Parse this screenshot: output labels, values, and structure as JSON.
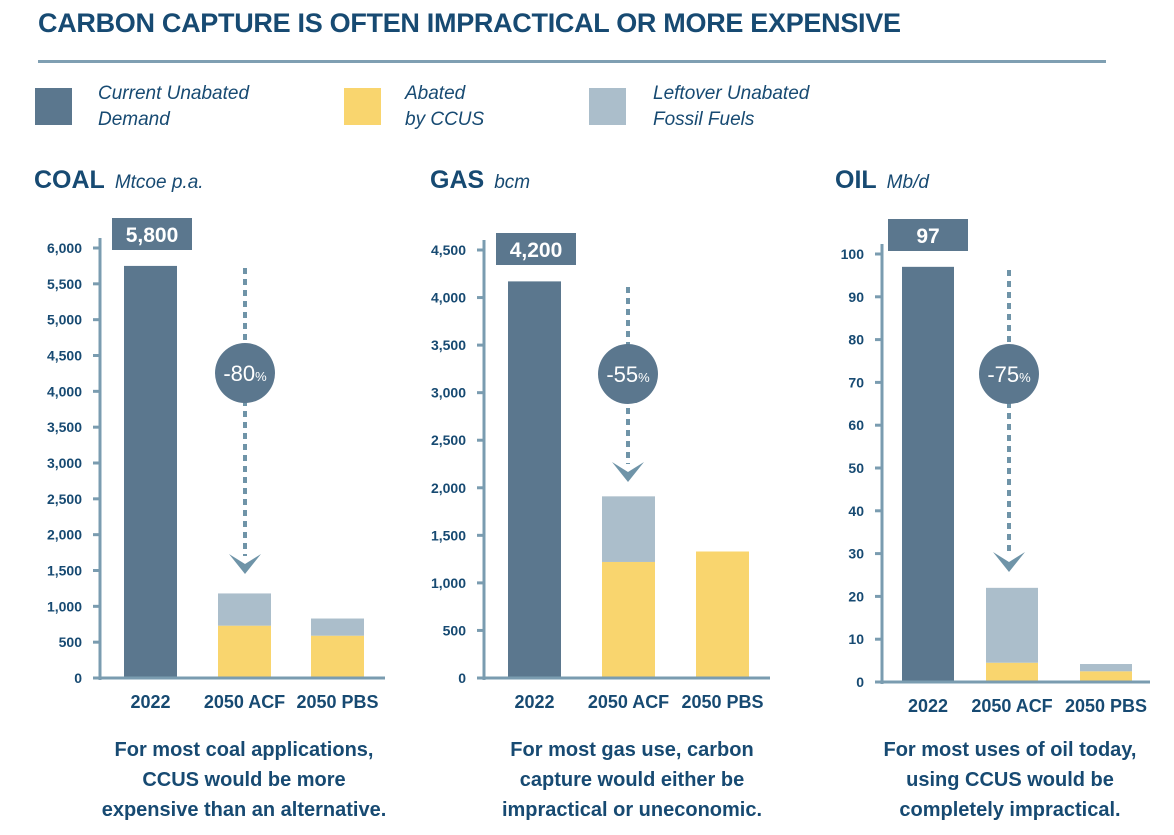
{
  "title": "CARBON CAPTURE IS OFTEN IMPRACTICAL OR MORE EXPENSIVE",
  "colors": {
    "current": "#5b778e",
    "abated": "#f9d56e",
    "leftover": "#abbecb",
    "axis": "#7a9cb0",
    "text": "#174a72"
  },
  "legend": [
    {
      "line1": "Current Unabated",
      "line2": "Demand",
      "color_key": "current"
    },
    {
      "line1": "Abated",
      "line2": "by CCUS",
      "color_key": "abated"
    },
    {
      "line1": "Leftover Unabated",
      "line2": "Fossil Fuels",
      "color_key": "leftover"
    }
  ],
  "chart_data": [
    {
      "type": "bar",
      "name": "COAL",
      "unit": "Mtcoe p.a.",
      "categories": [
        "2022",
        "2050 ACF",
        "2050 PBS"
      ],
      "ylim": [
        0,
        6000
      ],
      "yticks": [
        "0",
        "500",
        "1,000",
        "1,500",
        "2,000",
        "2,500",
        "3,000",
        "3,500",
        "4,000",
        "4,500",
        "5,000",
        "5,500",
        "6,000"
      ],
      "ytick_values": [
        0,
        500,
        1000,
        1500,
        2000,
        2500,
        3000,
        3500,
        4000,
        4500,
        5000,
        5500,
        6000
      ],
      "series": [
        {
          "name": "Current Unabated Demand",
          "values": [
            5750,
            0,
            0
          ]
        },
        {
          "name": "Abated by CCUS",
          "values": [
            0,
            730,
            590
          ]
        },
        {
          "name": "Leftover Unabated Fossil Fuels",
          "values": [
            0,
            450,
            240
          ]
        }
      ],
      "value_label": "5,800",
      "reduction_label": "-80",
      "reduction_suffix": "%",
      "caption": [
        "For most coal applications,",
        "CCUS would be more",
        "expensive than an alternative."
      ]
    },
    {
      "type": "bar",
      "name": "GAS",
      "unit": "bcm",
      "categories": [
        "2022",
        "2050 ACF",
        "2050 PBS"
      ],
      "ylim": [
        0,
        4500
      ],
      "yticks": [
        "0",
        "500",
        "1,000",
        "1,500",
        "2,000",
        "2,500",
        "3,000",
        "3,500",
        "4,000",
        "4,500"
      ],
      "ytick_values": [
        0,
        500,
        1000,
        1500,
        2000,
        2500,
        3000,
        3500,
        4000,
        4500
      ],
      "series": [
        {
          "name": "Current Unabated Demand",
          "values": [
            4170,
            0,
            0
          ]
        },
        {
          "name": "Abated by CCUS",
          "values": [
            0,
            1220,
            1330
          ]
        },
        {
          "name": "Leftover Unabated Fossil Fuels",
          "values": [
            0,
            690,
            0
          ]
        }
      ],
      "value_label": "4,200",
      "reduction_label": "-55",
      "reduction_suffix": "%",
      "caption": [
        "For most gas use, carbon",
        "capture would either be",
        "impractical or uneconomic."
      ]
    },
    {
      "type": "bar",
      "name": "OIL",
      "unit": "Mb/d",
      "categories": [
        "2022",
        "2050 ACF",
        "2050 PBS"
      ],
      "ylim": [
        0,
        100
      ],
      "yticks": [
        "0",
        "10",
        "20",
        "30",
        "40",
        "50",
        "60",
        "70",
        "80",
        "90",
        "100"
      ],
      "ytick_values": [
        0,
        10,
        20,
        30,
        40,
        50,
        60,
        70,
        80,
        90,
        100
      ],
      "series": [
        {
          "name": "Current Unabated Demand",
          "values": [
            97,
            0,
            0
          ]
        },
        {
          "name": "Abated by CCUS",
          "values": [
            0,
            4.5,
            2.5
          ]
        },
        {
          "name": "Leftover Unabated Fossil Fuels",
          "values": [
            0,
            17.5,
            1.7
          ]
        }
      ],
      "value_label": "97",
      "reduction_label": "-75",
      "reduction_suffix": "%",
      "caption": [
        "For most uses of oil today,",
        "using CCUS would be",
        "completely impractical."
      ]
    }
  ]
}
